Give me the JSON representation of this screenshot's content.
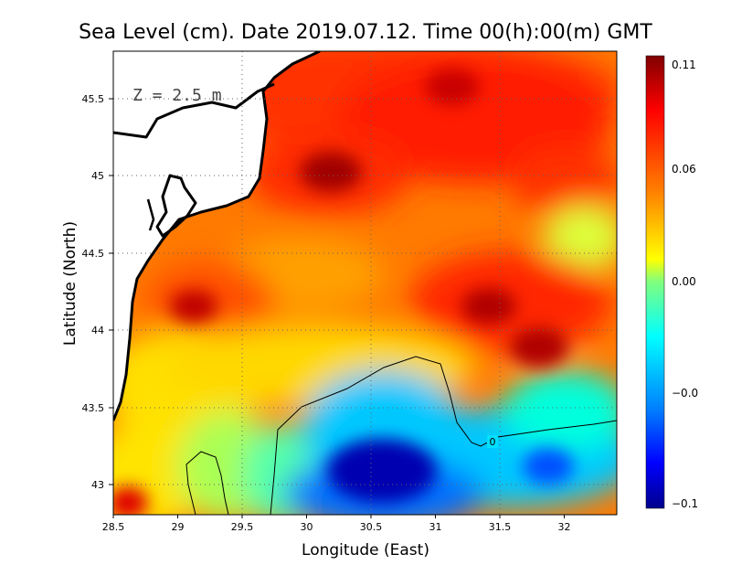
{
  "chart_data": {
    "type": "heatmap",
    "title": "Sea Level (cm). Date 2019.07.12. Time 00(h):00(m) GMT",
    "xlabel": "Longitude (East)",
    "ylabel": "Latitude (North)",
    "depth_label": "Z = 2.5 m",
    "xlim": [
      28.5,
      32.4
    ],
    "ylim": [
      42.8,
      45.8
    ],
    "x_ticks": [
      28.5,
      29,
      29.5,
      30,
      30.5,
      31,
      31.5,
      32
    ],
    "x_tick_labels": [
      "28.5",
      "29",
      "29.5",
      "30",
      "30.5",
      "31",
      "31.5",
      "32"
    ],
    "y_ticks": [
      43,
      43.5,
      44,
      44.5,
      45,
      45.5
    ],
    "y_tick_labels": [
      "43",
      "43.5",
      "44",
      "44.5",
      "45",
      "45.5"
    ],
    "grid": true,
    "colorbar": {
      "range": [
        -0.1,
        0.11
      ],
      "ticks": [
        0.11,
        0.06,
        0.0,
        -0.05,
        -0.1
      ],
      "tick_labels": [
        "0.11",
        "0.06",
        "0.00",
        "−0.0",
        "−0.1"
      ],
      "colormap": [
        "#00008c",
        "#0000ff",
        "#0080ff",
        "#00ffff",
        "#7fff7f",
        "#ffff00",
        "#ff8000",
        "#ff0000",
        "#800000"
      ]
    },
    "contour_label": "0",
    "field_features": [
      {
        "kind": "max",
        "lon": 30.15,
        "lat": 45.0,
        "value": 0.11
      },
      {
        "kind": "max",
        "lon": 31.1,
        "lat": 45.5,
        "value": 0.1
      },
      {
        "kind": "max",
        "lon": 29.15,
        "lat": 44.15,
        "value": 0.1
      },
      {
        "kind": "max",
        "lon": 31.45,
        "lat": 44.15,
        "value": 0.1
      },
      {
        "kind": "max",
        "lon": 31.85,
        "lat": 43.85,
        "value": 0.1
      },
      {
        "kind": "max",
        "lon": 28.7,
        "lat": 42.9,
        "value": 0.09
      },
      {
        "kind": "min",
        "lon": 30.6,
        "lat": 43.15,
        "value": -0.1
      },
      {
        "kind": "min",
        "lon": 31.9,
        "lat": 43.1,
        "value": -0.05
      }
    ]
  }
}
